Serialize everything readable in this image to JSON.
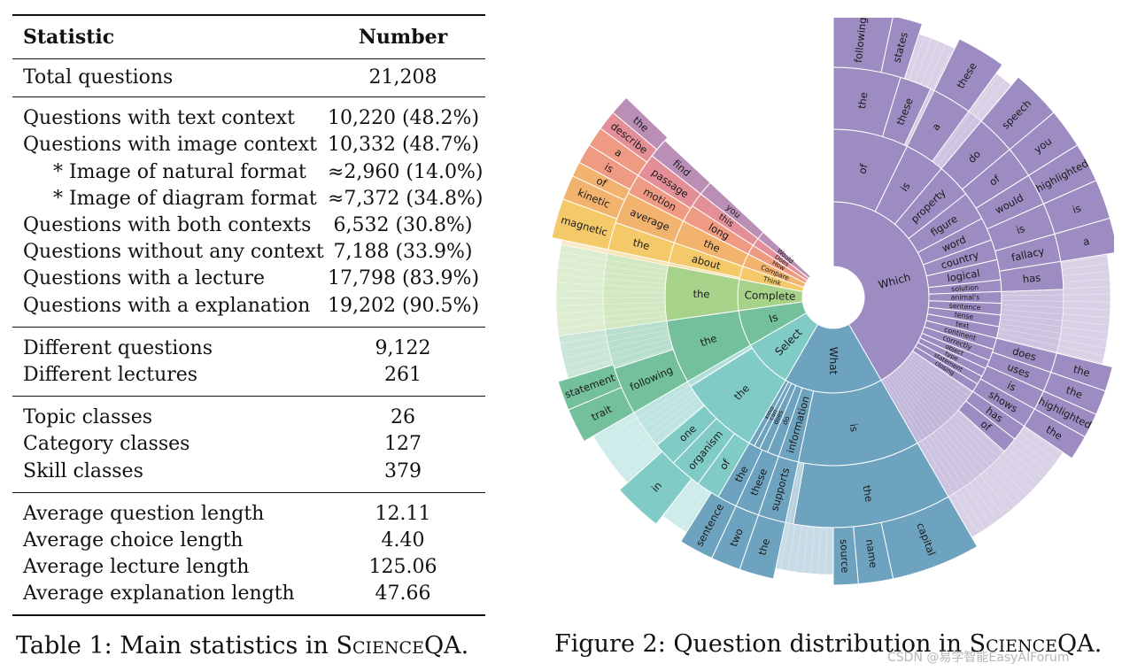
{
  "table": {
    "header": {
      "statistic": "Statistic",
      "number": "Number"
    },
    "groups": [
      [
        {
          "label": "Total questions",
          "value": "21,208"
        }
      ],
      [
        {
          "label": "Questions with text context",
          "value": "10,220 (48.2%)"
        },
        {
          "label": "Questions with image context",
          "value": "10,332 (48.7%)"
        },
        {
          "label": "* Image of natural format",
          "value": "≈2,960 (14.0%)",
          "sub": true
        },
        {
          "label": "* Image of diagram format",
          "value": "≈7,372 (34.8%)",
          "sub": true
        },
        {
          "label": "Questions with both contexts",
          "value": "6,532 (30.8%)"
        },
        {
          "label": "Questions without any context",
          "value": "7,188 (33.9%)"
        },
        {
          "label": "Questions with a lecture",
          "value": "17,798 (83.9%)"
        },
        {
          "label": "Questions with a explanation",
          "value": "19,202 (90.5%)"
        }
      ],
      [
        {
          "label": "Different questions",
          "value": "9,122"
        },
        {
          "label": "Different lectures",
          "value": "261"
        }
      ],
      [
        {
          "label": "Topic classes",
          "value": "26"
        },
        {
          "label": "Category classes",
          "value": "127"
        },
        {
          "label": "Skill classes",
          "value": "379"
        }
      ],
      [
        {
          "label": "Average question length",
          "value": "12.11"
        },
        {
          "label": "Average choice length",
          "value": "4.40"
        },
        {
          "label": "Average lecture length",
          "value": "125.06"
        },
        {
          "label": "Average explanation length",
          "value": "47.66"
        }
      ]
    ],
    "caption_prefix": "Table 1: Main statistics in ",
    "caption_name": "ScienceQA",
    "caption_suffix": "."
  },
  "figure": {
    "caption_prefix": "Figure 2: Question distribution in ",
    "caption_name": "ScienceQA",
    "caption_suffix": ".",
    "watermark": "CSDN @易学智能EasyAIForum",
    "colors": {
      "which": "#9d8cc2",
      "what": "#6ea3c0",
      "select": "#80cbc5",
      "is": "#74bf9c",
      "complete": "#a6d28a",
      "think": "#f3c96a",
      "compare": "#f2b36e",
      "how": "#ef9a82",
      "does": "#e48f97",
      "would": "#b98fb6"
    },
    "ring1": [
      {
        "word": "Which",
        "start": 0,
        "end": 150,
        "color": "which"
      },
      {
        "word": "What",
        "start": 150,
        "end": 210,
        "color": "what"
      },
      {
        "word": "Select",
        "start": 210,
        "end": 240,
        "color": "select"
      },
      {
        "word": "Is",
        "start": 240,
        "end": 262,
        "color": "is"
      },
      {
        "word": "Complete",
        "start": 262,
        "end": 281,
        "color": "complete"
      },
      {
        "word": "Think",
        "start": 281,
        "end": 289,
        "color": "think"
      },
      {
        "word": "Compare",
        "start": 289,
        "end": 297,
        "color": "compare"
      },
      {
        "word": "How",
        "start": 297,
        "end": 303,
        "color": "how"
      },
      {
        "word": "Does",
        "start": 303,
        "end": 308,
        "color": "does"
      },
      {
        "word": "Would",
        "start": 308,
        "end": 313,
        "color": "would"
      }
    ],
    "ring2": [
      {
        "word": "of",
        "start": 0,
        "end": 26,
        "color": "which"
      },
      {
        "word": "is",
        "start": 26,
        "end": 40,
        "color": "which"
      },
      {
        "word": "property",
        "start": 40,
        "end": 52,
        "color": "which"
      },
      {
        "word": "figure",
        "start": 52,
        "end": 62,
        "color": "which"
      },
      {
        "word": "word",
        "start": 62,
        "end": 70,
        "color": "which"
      },
      {
        "word": "country",
        "start": 70,
        "end": 77,
        "color": "which"
      },
      {
        "word": "logical",
        "start": 77,
        "end": 84,
        "color": "which"
      },
      {
        "word": "solution",
        "start": 84,
        "end": 88,
        "color": "which"
      },
      {
        "word": "animal's",
        "start": 88,
        "end": 92,
        "color": "which"
      },
      {
        "word": "sentence",
        "start": 92,
        "end": 96,
        "color": "which"
      },
      {
        "word": "tense",
        "start": 96,
        "end": 100,
        "color": "which"
      },
      {
        "word": "text",
        "start": 100,
        "end": 104,
        "color": "which"
      },
      {
        "word": "continent",
        "start": 104,
        "end": 108,
        "color": "which"
      },
      {
        "word": "correctly",
        "start": 108,
        "end": 112,
        "color": "which"
      },
      {
        "word": "object",
        "start": 112,
        "end": 115,
        "color": "which"
      },
      {
        "word": "type",
        "start": 115,
        "end": 118,
        "color": "which"
      },
      {
        "word": "statement",
        "start": 118,
        "end": 121,
        "color": "which"
      },
      {
        "word": "closing",
        "start": 121,
        "end": 124,
        "color": "which"
      },
      {
        "word": "is",
        "start": 150,
        "end": 192,
        "color": "what"
      },
      {
        "word": "information",
        "start": 192,
        "end": 199,
        "color": "what"
      },
      {
        "word": "do",
        "start": 199,
        "end": 203,
        "color": "what"
      },
      {
        "word": "does",
        "start": 203,
        "end": 206,
        "color": "what"
      },
      {
        "word": "can",
        "start": 206,
        "end": 208,
        "color": "what"
      },
      {
        "word": "kind",
        "start": 208,
        "end": 210,
        "color": "what"
      },
      {
        "word": "the",
        "start": 210,
        "end": 238,
        "color": "select"
      },
      {
        "word": "the",
        "start": 240,
        "end": 262,
        "color": "is"
      },
      {
        "word": "the",
        "start": 262,
        "end": 281,
        "color": "complete"
      },
      {
        "word": "about",
        "start": 282,
        "end": 289,
        "color": "think"
      },
      {
        "word": "the",
        "start": 289,
        "end": 297,
        "color": "compare"
      },
      {
        "word": "long",
        "start": 297,
        "end": 303,
        "color": "how"
      },
      {
        "word": "this",
        "start": 303,
        "end": 308,
        "color": "does"
      },
      {
        "word": "you",
        "start": 308,
        "end": 313,
        "color": "would"
      }
    ],
    "ring3": [
      {
        "word": "the",
        "start": 0,
        "end": 17,
        "color": "which"
      },
      {
        "word": "these",
        "start": 17,
        "end": 25,
        "color": "which"
      },
      {
        "word": "a",
        "start": 26,
        "end": 36,
        "color": "which"
      },
      {
        "word": "do",
        "start": 40,
        "end": 50,
        "color": "which"
      },
      {
        "word": "of",
        "start": 50,
        "end": 58,
        "color": "which"
      },
      {
        "word": "would",
        "start": 58,
        "end": 66,
        "color": "which"
      },
      {
        "word": "is",
        "start": 66,
        "end": 74,
        "color": "which"
      },
      {
        "word": "fallacy",
        "start": 74,
        "end": 81,
        "color": "which"
      },
      {
        "word": "has",
        "start": 81,
        "end": 88,
        "color": "which"
      },
      {
        "word": "does",
        "start": 104,
        "end": 109,
        "color": "which"
      },
      {
        "word": "uses",
        "start": 109,
        "end": 114,
        "color": "which"
      },
      {
        "word": "is",
        "start": 114,
        "end": 119,
        "color": "which"
      },
      {
        "word": "shows",
        "start": 119,
        "end": 124,
        "color": "which"
      },
      {
        "word": "has",
        "start": 124,
        "end": 128,
        "color": "which"
      },
      {
        "word": "of",
        "start": 128,
        "end": 132,
        "color": "which"
      },
      {
        "word": "the",
        "start": 150,
        "end": 190,
        "color": "what"
      },
      {
        "word": "supports",
        "start": 192,
        "end": 199,
        "color": "what"
      },
      {
        "word": "these",
        "start": 199,
        "end": 205,
        "color": "what"
      },
      {
        "word": "the",
        "start": 205,
        "end": 210,
        "color": "what"
      },
      {
        "word": "of",
        "start": 210,
        "end": 216,
        "color": "select"
      },
      {
        "word": "organism",
        "start": 216,
        "end": 224,
        "color": "select"
      },
      {
        "word": "one",
        "start": 224,
        "end": 230,
        "color": "select"
      },
      {
        "word": "following",
        "start": 240,
        "end": 252,
        "color": "is"
      },
      {
        "word": "the",
        "start": 282,
        "end": 289,
        "color": "think"
      },
      {
        "word": "average",
        "start": 289,
        "end": 297,
        "color": "compare"
      },
      {
        "word": "motion",
        "start": 297,
        "end": 302,
        "color": "how"
      },
      {
        "word": "passage",
        "start": 302,
        "end": 308,
        "color": "does"
      },
      {
        "word": "find",
        "start": 308,
        "end": 313,
        "color": "would"
      }
    ],
    "ring4": [
      {
        "word": "following",
        "start": 0,
        "end": 12,
        "color": "which"
      },
      {
        "word": "states",
        "start": 12,
        "end": 18,
        "color": "which"
      },
      {
        "word": "these",
        "start": 26,
        "end": 36,
        "color": "which"
      },
      {
        "word": "speech",
        "start": 40,
        "end": 50,
        "color": "which"
      },
      {
        "word": "you",
        "start": 50,
        "end": 58,
        "color": "which"
      },
      {
        "word": "highlighted",
        "start": 58,
        "end": 66,
        "color": "which"
      },
      {
        "word": "is",
        "start": 66,
        "end": 74,
        "color": "which"
      },
      {
        "word": "a",
        "start": 74,
        "end": 81,
        "color": "which"
      },
      {
        "word": "the",
        "start": 104,
        "end": 109,
        "color": "which"
      },
      {
        "word": "the",
        "start": 109,
        "end": 114,
        "color": "which"
      },
      {
        "word": "highlighted",
        "start": 114,
        "end": 119,
        "color": "which"
      },
      {
        "word": "the",
        "start": 119,
        "end": 124,
        "color": "which"
      },
      {
        "word": "capital",
        "start": 150,
        "end": 168,
        "color": "what"
      },
      {
        "word": "name",
        "start": 168,
        "end": 175,
        "color": "what"
      },
      {
        "word": "source",
        "start": 175,
        "end": 180,
        "color": "what"
      },
      {
        "word": "the",
        "start": 192,
        "end": 199,
        "color": "what"
      },
      {
        "word": "two",
        "start": 199,
        "end": 205,
        "color": "what"
      },
      {
        "word": "sentence",
        "start": 205,
        "end": 212,
        "color": "what"
      },
      {
        "word": "in",
        "start": 218,
        "end": 228,
        "color": "select"
      },
      {
        "word": "trait",
        "start": 240,
        "end": 247,
        "color": "is"
      },
      {
        "word": "statement",
        "start": 247,
        "end": 253,
        "color": "is"
      },
      {
        "word": "magnetic",
        "start": 282,
        "end": 290,
        "color": "think"
      },
      {
        "word": "kinetic",
        "start": 290,
        "end": 295,
        "color": "compare"
      },
      {
        "word": "of",
        "start": 295,
        "end": 298,
        "color": "compare"
      },
      {
        "word": "is",
        "start": 298,
        "end": 302,
        "color": "how"
      },
      {
        "word": "a",
        "start": 302,
        "end": 306,
        "color": "how"
      },
      {
        "word": "describe",
        "start": 306,
        "end": 310,
        "color": "does"
      },
      {
        "word": "the",
        "start": 310,
        "end": 314,
        "color": "would"
      }
    ]
  }
}
